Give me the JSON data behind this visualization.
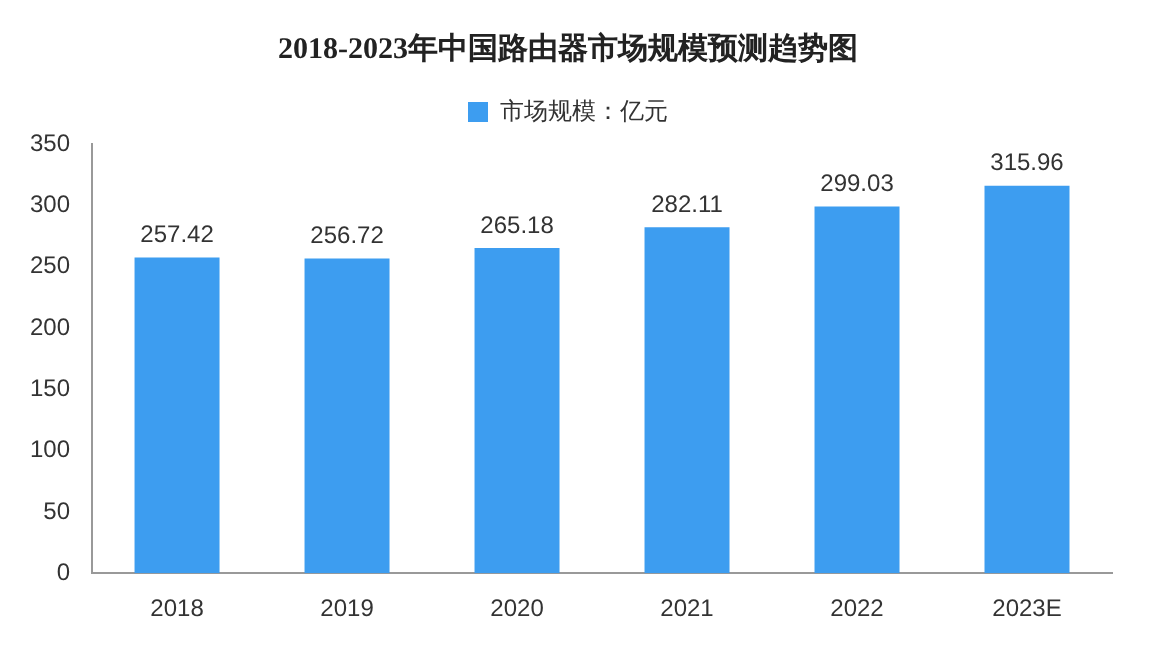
{
  "chart_data": {
    "type": "bar",
    "title": "2018-2023年中国路由器市场规模预测趋势图",
    "categories": [
      "2018",
      "2019",
      "2020",
      "2021",
      "2022",
      "2023E"
    ],
    "series": [
      {
        "name": "市场规模：亿元",
        "color": "#3d9df0",
        "values": [
          257.42,
          256.72,
          265.18,
          282.11,
          299.03,
          315.96
        ]
      }
    ],
    "ylim": [
      0,
      350
    ],
    "yticks": [
      0,
      50,
      100,
      150,
      200,
      250,
      300,
      350
    ],
    "grid": false,
    "legend": "top",
    "data_labels": true
  }
}
